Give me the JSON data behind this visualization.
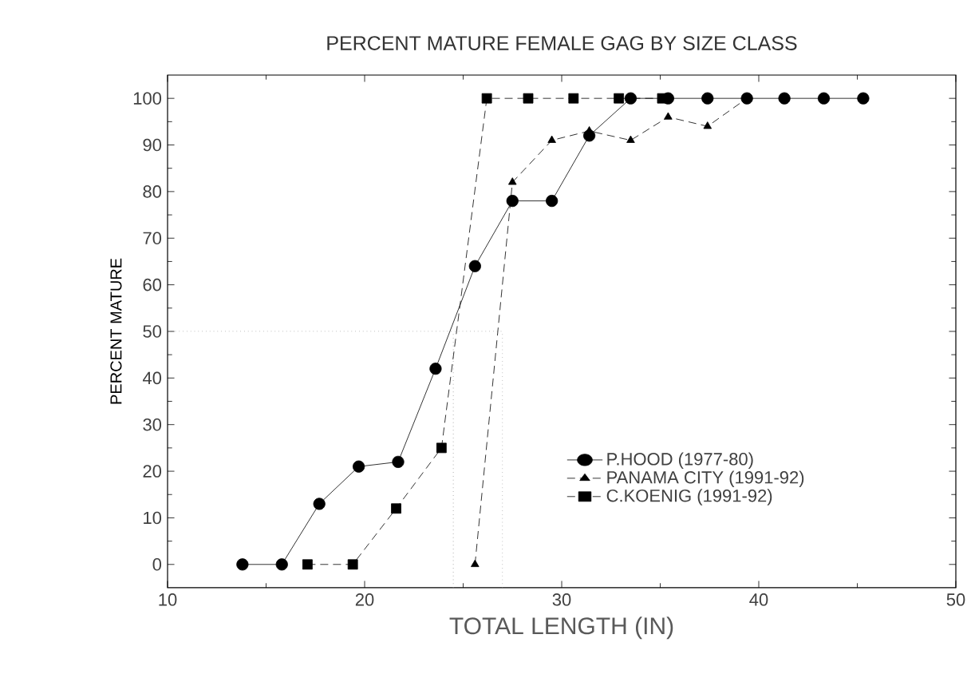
{
  "chart_data": {
    "type": "line",
    "title": "PERCENT MATURE FEMALE GAG BY SIZE CLASS",
    "xlabel": "TOTAL LENGTH (IN)",
    "ylabel": "PERCENT MATURE",
    "xlim": [
      10,
      50
    ],
    "xticks": [
      10,
      20,
      30,
      40,
      50
    ],
    "ylim": [
      -5,
      105
    ],
    "yticks": [
      0,
      10,
      20,
      30,
      40,
      50,
      60,
      70,
      80,
      90,
      100
    ],
    "grid": false,
    "legend": "right",
    "series": [
      {
        "name": "P.HOOD (1977-80)",
        "color": "#000000",
        "marker": "circle",
        "line_style": "solid",
        "x": [
          13.8,
          15.8,
          17.7,
          19.7,
          21.7,
          23.6,
          25.6,
          27.5,
          29.5,
          31.4,
          33.5,
          35.4,
          37.4,
          39.4,
          41.3,
          43.3,
          45.3
        ],
        "values": [
          0,
          0,
          13,
          21,
          22,
          42,
          64,
          78,
          78,
          92,
          100,
          100,
          100,
          100,
          100,
          100,
          100
        ]
      },
      {
        "name": "PANAMA CITY (1991-92)",
        "color": "#000000",
        "marker": "triangle",
        "line_style": "dashed",
        "x": [
          25.6,
          27.5,
          29.5,
          31.4,
          33.5,
          35.4,
          37.4,
          39.4
        ],
        "values": [
          0,
          82,
          91,
          93,
          91,
          96,
          94,
          100
        ]
      },
      {
        "name": "C.KOENIG (1991-92)",
        "color": "#000000",
        "marker": "square",
        "line_style": "dashed",
        "x": [
          17.1,
          19.4,
          21.6,
          23.9,
          26.2,
          28.3,
          30.6,
          32.9,
          35.1
        ],
        "values": [
          0,
          0,
          12,
          25,
          100,
          100,
          100,
          100,
          100
        ]
      }
    ],
    "ref_lines": [
      {
        "axis": "y",
        "value": 50,
        "color": "#808080",
        "line_style": "dotted"
      },
      {
        "axis": "x",
        "value": 24.5,
        "color": "#808080",
        "line_style": "dotted"
      },
      {
        "axis": "x",
        "value": 27.0,
        "color": "#808080",
        "line_style": "dotted"
      }
    ]
  }
}
